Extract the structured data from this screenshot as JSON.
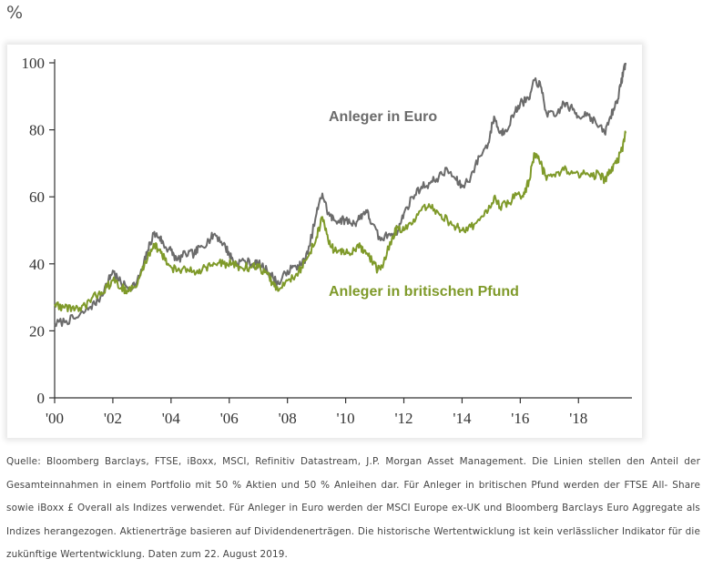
{
  "unit_label": "%",
  "chart_data": {
    "type": "line",
    "xlabel": "",
    "ylabel": "",
    "xlim": [
      2000.0,
      2019.65
    ],
    "ylim": [
      0,
      100
    ],
    "yticks": [
      0,
      20,
      40,
      60,
      80,
      100
    ],
    "ytick_labels": [
      "0",
      "20",
      "40",
      "60",
      "80",
      "100"
    ],
    "xticks": [
      2000,
      2002,
      2004,
      2006,
      2008,
      2010,
      2012,
      2014,
      2016,
      2018
    ],
    "xtick_labels": [
      "'00",
      "'02",
      "'04",
      "'06",
      "'08",
      "'10",
      "'12",
      "'14",
      "'16",
      "'18"
    ],
    "grid": false,
    "series": [
      {
        "name": "Anleger in Euro",
        "color": "#6b6b6b",
        "points": [
          [
            2000.0,
            22
          ],
          [
            2000.4,
            23
          ],
          [
            2000.8,
            24
          ],
          [
            2001.2,
            27
          ],
          [
            2001.5,
            29
          ],
          [
            2001.8,
            34
          ],
          [
            2002.0,
            38
          ],
          [
            2002.2,
            35
          ],
          [
            2002.5,
            33
          ],
          [
            2002.8,
            34
          ],
          [
            2003.0,
            38
          ],
          [
            2003.2,
            44
          ],
          [
            2003.4,
            49
          ],
          [
            2003.6,
            48
          ],
          [
            2003.8,
            45
          ],
          [
            2004.0,
            44
          ],
          [
            2004.2,
            41
          ],
          [
            2004.5,
            43
          ],
          [
            2004.8,
            43
          ],
          [
            2005.0,
            45
          ],
          [
            2005.3,
            47
          ],
          [
            2005.5,
            49
          ],
          [
            2005.8,
            46
          ],
          [
            2006.0,
            43
          ],
          [
            2006.2,
            40
          ],
          [
            2006.5,
            41
          ],
          [
            2006.8,
            40
          ],
          [
            2007.0,
            40
          ],
          [
            2007.3,
            38
          ],
          [
            2007.5,
            36
          ],
          [
            2007.7,
            34
          ],
          [
            2008.0,
            38
          ],
          [
            2008.3,
            39
          ],
          [
            2008.5,
            40
          ],
          [
            2008.7,
            43
          ],
          [
            2009.0,
            55
          ],
          [
            2009.2,
            61
          ],
          [
            2009.4,
            55
          ],
          [
            2009.6,
            53
          ],
          [
            2009.8,
            53
          ],
          [
            2010.0,
            53
          ],
          [
            2010.3,
            52
          ],
          [
            2010.5,
            54
          ],
          [
            2010.7,
            56
          ],
          [
            2010.9,
            52
          ],
          [
            2011.2,
            47
          ],
          [
            2011.5,
            49
          ],
          [
            2011.8,
            50
          ],
          [
            2012.0,
            55
          ],
          [
            2012.3,
            60
          ],
          [
            2012.6,
            63
          ],
          [
            2012.9,
            64
          ],
          [
            2013.2,
            66
          ],
          [
            2013.5,
            68
          ],
          [
            2013.8,
            65
          ],
          [
            2014.0,
            63
          ],
          [
            2014.3,
            66
          ],
          [
            2014.6,
            72
          ],
          [
            2014.9,
            76
          ],
          [
            2015.1,
            84
          ],
          [
            2015.3,
            79
          ],
          [
            2015.5,
            80
          ],
          [
            2015.8,
            85
          ],
          [
            2016.0,
            88
          ],
          [
            2016.3,
            89
          ],
          [
            2016.5,
            95
          ],
          [
            2016.7,
            93
          ],
          [
            2016.9,
            85
          ],
          [
            2017.2,
            84
          ],
          [
            2017.5,
            88
          ],
          [
            2017.8,
            86
          ],
          [
            2018.0,
            84
          ],
          [
            2018.3,
            85
          ],
          [
            2018.6,
            82
          ],
          [
            2018.9,
            79
          ],
          [
            2019.1,
            84
          ],
          [
            2019.3,
            88
          ],
          [
            2019.45,
            93
          ],
          [
            2019.55,
            98
          ],
          [
            2019.62,
            100
          ]
        ]
      },
      {
        "name": "Anleger in britischen Pfund",
        "color": "#7f9a2a",
        "points": [
          [
            2000.0,
            28
          ],
          [
            2000.3,
            27
          ],
          [
            2000.6,
            27
          ],
          [
            2000.9,
            26
          ],
          [
            2001.2,
            29
          ],
          [
            2001.5,
            31
          ],
          [
            2001.8,
            33
          ],
          [
            2002.0,
            35
          ],
          [
            2002.3,
            33
          ],
          [
            2002.5,
            32
          ],
          [
            2002.8,
            33
          ],
          [
            2003.0,
            38
          ],
          [
            2003.2,
            42
          ],
          [
            2003.4,
            46
          ],
          [
            2003.6,
            44
          ],
          [
            2003.8,
            41
          ],
          [
            2004.0,
            39
          ],
          [
            2004.3,
            38
          ],
          [
            2004.6,
            38
          ],
          [
            2004.9,
            38
          ],
          [
            2005.2,
            39
          ],
          [
            2005.5,
            40
          ],
          [
            2005.8,
            40
          ],
          [
            2006.1,
            40
          ],
          [
            2006.4,
            39
          ],
          [
            2006.7,
            39
          ],
          [
            2007.0,
            39
          ],
          [
            2007.3,
            37
          ],
          [
            2007.5,
            34
          ],
          [
            2007.7,
            32
          ],
          [
            2008.0,
            35
          ],
          [
            2008.3,
            37
          ],
          [
            2008.5,
            39
          ],
          [
            2008.7,
            42
          ],
          [
            2009.0,
            48
          ],
          [
            2009.2,
            54
          ],
          [
            2009.4,
            47
          ],
          [
            2009.6,
            44
          ],
          [
            2009.8,
            44
          ],
          [
            2010.0,
            43
          ],
          [
            2010.3,
            44
          ],
          [
            2010.5,
            45
          ],
          [
            2010.7,
            43
          ],
          [
            2010.9,
            41
          ],
          [
            2011.1,
            38
          ],
          [
            2011.3,
            40
          ],
          [
            2011.6,
            48
          ],
          [
            2011.8,
            51
          ],
          [
            2012.0,
            50
          ],
          [
            2012.3,
            52
          ],
          [
            2012.6,
            56
          ],
          [
            2012.9,
            57
          ],
          [
            2013.2,
            55
          ],
          [
            2013.5,
            53
          ],
          [
            2013.8,
            51
          ],
          [
            2014.0,
            50
          ],
          [
            2014.3,
            51
          ],
          [
            2014.6,
            53
          ],
          [
            2014.9,
            56
          ],
          [
            2015.1,
            60
          ],
          [
            2015.3,
            57
          ],
          [
            2015.6,
            58
          ],
          [
            2015.9,
            61
          ],
          [
            2016.1,
            60
          ],
          [
            2016.3,
            65
          ],
          [
            2016.5,
            73
          ],
          [
            2016.7,
            70
          ],
          [
            2016.9,
            65
          ],
          [
            2017.2,
            66
          ],
          [
            2017.5,
            68
          ],
          [
            2017.8,
            67
          ],
          [
            2018.1,
            67
          ],
          [
            2018.4,
            66
          ],
          [
            2018.7,
            67
          ],
          [
            2018.9,
            65
          ],
          [
            2019.1,
            68
          ],
          [
            2019.3,
            70
          ],
          [
            2019.5,
            74
          ],
          [
            2019.62,
            79
          ]
        ]
      }
    ]
  },
  "source_text": "Quelle: Bloomberg Barclays, FTSE, iBoxx, MSCI, Refinitiv Datastream, J.P. Morgan Asset Management. Die Linien stellen den Anteil der Gesamteinnahmen in einem Portfolio mit 50 % Aktien und 50 % Anleihen dar. Für Anleger in britischen Pfund werden der FTSE All- Share sowie iBoxx £ Overall als Indizes verwendet. Für Anleger in Euro werden der MSCI Europe ex-UK und Bloomberg Barclays Euro Aggregate als Indizes herangezogen. Aktienerträge basieren auf Dividendenerträgen. Die historische Wertentwicklung ist kein verlässlicher Indikator für die zukünftige Wertentwicklung. Daten zum 22. August 2019."
}
